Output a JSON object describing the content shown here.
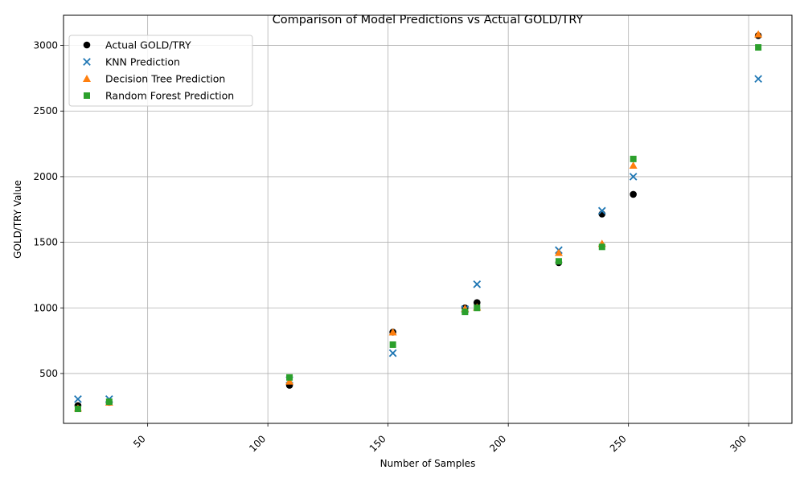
{
  "chart_data": {
    "type": "scatter",
    "title": "Comparison of Model Predictions vs Actual GOLD/TRY",
    "xlabel": "Number of Samples",
    "ylabel": "GOLD/TRY Value",
    "xlim": [
      15,
      318
    ],
    "ylim": [
      120,
      3230
    ],
    "xticks": [
      50,
      100,
      150,
      200,
      250,
      300
    ],
    "yticks": [
      500,
      1000,
      1500,
      2000,
      2500,
      3000
    ],
    "grid": true,
    "legend_position": "top-left",
    "series": [
      {
        "name": "Actual GOLD/TRY",
        "marker": "circle",
        "color": "#000000",
        "x": [
          21,
          34,
          109,
          152,
          182,
          187,
          221,
          239,
          252,
          304
        ],
        "y": [
          255,
          280,
          410,
          815,
          1000,
          1040,
          1345,
          1715,
          1865,
          3075
        ]
      },
      {
        "name": "KNN Prediction",
        "marker": "x",
        "color": "#1f77b4",
        "x": [
          21,
          34,
          109,
          152,
          182,
          187,
          221,
          239,
          252,
          304
        ],
        "y": [
          305,
          305,
          450,
          655,
          990,
          1180,
          1440,
          1740,
          2000,
          2745
        ]
      },
      {
        "name": "Decision Tree Prediction",
        "marker": "triangle",
        "color": "#ff7f0e",
        "x": [
          21,
          34,
          109,
          152,
          182,
          187,
          221,
          239,
          252,
          304
        ],
        "y": [
          235,
          280,
          440,
          815,
          995,
          1005,
          1420,
          1490,
          2085,
          3085
        ]
      },
      {
        "name": "Random Forest Prediction",
        "marker": "square",
        "color": "#2ca02c",
        "x": [
          21,
          34,
          109,
          152,
          182,
          187,
          221,
          239,
          252,
          304
        ],
        "y": [
          230,
          285,
          470,
          720,
          970,
          1000,
          1355,
          1465,
          2135,
          2985
        ]
      }
    ]
  }
}
